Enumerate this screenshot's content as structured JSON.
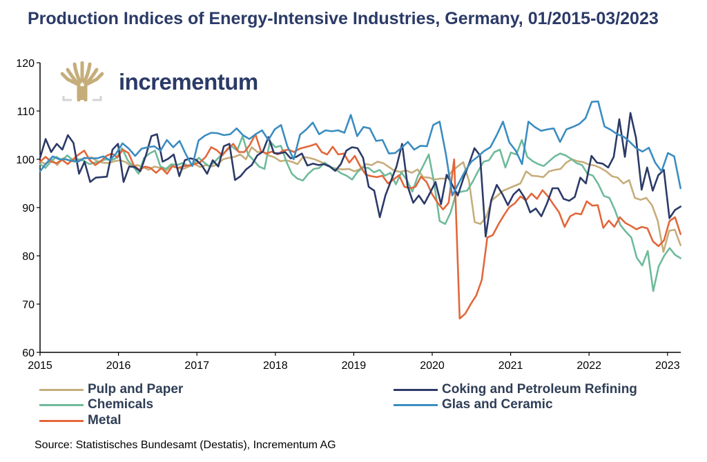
{
  "title": "Production Indices of Energy-Intensive Industries, Germany, 01/2015-03/2023",
  "logo": {
    "name": "incrementum",
    "icon": "tree-logo-icon"
  },
  "source": "Source: Statistisches Bundesamt (Destatis), Incrementum AG",
  "chart_data": {
    "type": "line",
    "title": "Production Indices of Energy-Intensive Industries, Germany, 01/2015-03/2023",
    "xlabel": "",
    "ylabel": "",
    "ylim": [
      60,
      120
    ],
    "yticks": [
      60,
      70,
      80,
      90,
      100,
      110,
      120
    ],
    "xticks": [
      "2015",
      "2016",
      "2017",
      "2018",
      "2019",
      "2020",
      "2021",
      "2022",
      "2023"
    ],
    "x_start": "2015-01",
    "x_end": "2023-03",
    "frequency": "monthly",
    "grid": false,
    "legend_position": "bottom",
    "series": [
      {
        "name": "Pulp and Paper",
        "color": "#c5ad7a",
        "values": [
          99.5,
          99,
          100,
          98.8,
          100.2,
          99.8,
          99.5,
          100,
          100.2,
          100.4,
          99.6,
          99.3,
          99.2,
          99.6,
          99.8,
          99.4,
          98.5,
          98.8,
          98.4,
          97.8,
          98.5,
          98.2,
          97.6,
          98.6,
          98.2,
          98,
          98.5,
          99,
          98.4,
          98.8,
          98.5,
          98.9,
          100,
          100.3,
          100.5,
          101,
          100,
          102.5,
          101.5,
          101.5,
          100.8,
          100.4,
          99.6,
          99.8,
          99.5,
          99,
          100.5,
          100.3,
          100,
          99.5,
          99,
          98.3,
          98,
          97.9,
          98,
          97.5,
          98,
          99,
          98.8,
          99.5,
          99.2,
          98.4,
          97.6,
          97.4,
          97.7,
          97.2,
          97.9,
          96.3,
          96.2,
          95.8,
          96,
          96,
          97.5,
          98.5,
          99.4,
          95.5,
          87,
          86.6,
          88,
          91.5,
          92.5,
          93.5,
          94,
          94.5,
          95,
          97.5,
          96.6,
          96.5,
          96.3,
          97.5,
          97.8,
          98,
          99.3,
          100,
          99.6,
          99.4,
          98.9,
          98.7,
          98.2,
          97.5,
          96.5,
          96.2,
          95,
          95.7,
          92,
          91.6,
          92,
          90.5,
          87.3,
          80.8,
          85.2,
          85.4,
          82.2
        ]
      },
      {
        "name": "Chemicals",
        "color": "#6fba9a",
        "values": [
          99,
          98.2,
          99.6,
          100.5,
          99.8,
          100.8,
          99.8,
          100,
          99.7,
          99,
          99.3,
          99.6,
          100,
          99.8,
          100.3,
          102.3,
          99.8,
          98.5,
          97,
          100.3,
          101.2,
          101.8,
          98.5,
          98,
          99,
          98.8,
          99.2,
          98.7,
          99,
          100.3,
          99.3,
          98.5,
          99.6,
          100.8,
          101.7,
          102.7,
          101.8,
          104.8,
          101,
          99.8,
          98.5,
          98,
          103.7,
          102.5,
          102.8,
          99.5,
          97,
          96,
          95.6,
          97,
          98,
          98.2,
          99.3,
          98.5,
          97.9,
          97.1,
          96.6,
          95.8,
          97.4,
          98.3,
          98.2,
          97.3,
          97.8,
          96.6,
          97.2,
          94.8,
          97.3,
          95.7,
          93.3,
          96.5,
          98.7,
          101,
          95,
          87.2,
          86.6,
          89,
          93,
          93.3,
          93.5,
          95.3,
          97.5,
          99.5,
          99.8,
          101.5,
          102,
          98.3,
          101.4,
          101,
          104,
          100.5,
          99.6,
          99,
          98.6,
          99.6,
          100.6,
          101.2,
          100.8,
          100.1,
          99.2,
          98.8,
          97,
          96.6,
          94.8,
          92.4,
          92,
          89.5,
          86.4,
          85,
          83.8,
          79.6,
          78,
          81,
          72.7,
          77.8,
          80,
          81.6,
          80.2,
          79.5
        ]
      },
      {
        "name": "Metal",
        "color": "#e2673a",
        "values": [
          99.5,
          100.5,
          99.5,
          99.2,
          99.9,
          99,
          100,
          101,
          101.8,
          99.8,
          98.8,
          99.6,
          100.7,
          101.2,
          100.4,
          102,
          101.3,
          98.7,
          97.8,
          98.5,
          98.2,
          97.2,
          98.2,
          97,
          98.6,
          98.2,
          98.6,
          98.7,
          99,
          99.4,
          100.5,
          102.5,
          101.9,
          100.8,
          102.2,
          103.2,
          101.5,
          101.5,
          103,
          105.2,
          101.7,
          101.2,
          101.6,
          101,
          101.8,
          102,
          101.5,
          102.2,
          102.5,
          102.8,
          103.2,
          101.5,
          101,
          102.6,
          101,
          101.2,
          99.3,
          100.7,
          98.5,
          96.8,
          96.5,
          96.3,
          96.6,
          95,
          95.8,
          96.7,
          94.3,
          94,
          94.3,
          96.4,
          95.3,
          92.8,
          91,
          89.6,
          91,
          100,
          67,
          68,
          70,
          71.8,
          75,
          83.8,
          84.3,
          86.5,
          88.4,
          90.1,
          90.9,
          92.3,
          91.5,
          92.9,
          91.8,
          93.6,
          92.3,
          90.6,
          89,
          86,
          88.2,
          88.8,
          88.6,
          91.3,
          90.4,
          90.5,
          85.8,
          87.3,
          86,
          88,
          86.8,
          86.2,
          85.5,
          86,
          85.7,
          83,
          82,
          83.2,
          87.2,
          88,
          84.5
        ]
      },
      {
        "name": "Coking and Petroleum Refining",
        "color": "#2b3a67",
        "values": [
          100.3,
          104.2,
          101.5,
          103.2,
          102,
          105,
          103.4,
          97,
          99.5,
          95.3,
          96.2,
          96.3,
          96.4,
          102,
          103.2,
          95.3,
          98.5,
          98.4,
          97.5,
          100.8,
          104.8,
          105.2,
          99.5,
          100.1,
          101,
          96.5,
          99.8,
          100.2,
          99.9,
          98.8,
          97,
          99.8,
          98.5,
          102.7,
          103.2,
          95.7,
          96.5,
          97.9,
          98.8,
          100.8,
          101.6,
          104.6,
          101.3,
          101.2,
          101.5,
          100.2,
          100.5,
          101.2,
          98.7,
          99.1,
          98.8,
          99,
          98.5,
          97.6,
          99,
          101.8,
          102.5,
          102.3,
          100.3,
          94.3,
          93.5,
          88,
          92.5,
          95.5,
          98.5,
          103.2,
          94.4,
          91,
          92.5,
          90.8,
          93,
          95.3,
          90.7,
          96.8,
          94.7,
          92.5,
          96,
          99,
          102.3,
          100.8,
          84,
          91.5,
          94.7,
          92.8,
          90.5,
          92.7,
          93.8,
          92,
          89,
          89.8,
          88.2,
          90.8,
          94,
          94,
          91.8,
          91.4,
          92.2,
          96.2,
          95,
          100.7,
          99.3,
          99.1,
          98.3,
          100.5,
          108.3,
          100.5,
          109.6,
          104.4,
          93.7,
          98.3,
          93.5,
          96.7,
          97.8,
          87.8,
          89.5,
          90.2
        ]
      },
      {
        "name": "Glas and Ceramic",
        "color": "#3a8cc1",
        "values": [
          97.5,
          99.2,
          100.6,
          100,
          100,
          99.7,
          99.5,
          100.3,
          100.2,
          100.2,
          100.6,
          99.8,
          101.2,
          103.3,
          102.2,
          100.7,
          102.2,
          102.5,
          102.7,
          101.8,
          104,
          102.5,
          103.8,
          101,
          98.6,
          103.9,
          104.9,
          105.5,
          105.4,
          105,
          105.2,
          106.4,
          105,
          104.2,
          105.2,
          106,
          104,
          106.2,
          107.1,
          102.7,
          100,
          105.1,
          106.2,
          107.6,
          105.2,
          106,
          105.8,
          106,
          105.5,
          109.2,
          104.8,
          106.7,
          106.4,
          103.8,
          104,
          101.2,
          101.3,
          102.4,
          103.6,
          102,
          102.8,
          102.7,
          107.1,
          107.8,
          101,
          92.5,
          95,
          97.5,
          99.5,
          100.5,
          101.7,
          102.5,
          105,
          107.8,
          103.5,
          101.8,
          99,
          107.8,
          106.7,
          105.9,
          106.2,
          106.4,
          103.6,
          106.2,
          106.7,
          107.3,
          108.5,
          111.9,
          112,
          106.8,
          106.1,
          105.2,
          104.7,
          103.6,
          102.3,
          101.6,
          102.4,
          99.3,
          97.5,
          101.3,
          100.6,
          94
        ]
      }
    ]
  },
  "legend": [
    {
      "label": "Pulp and Paper",
      "color": "#c5ad7a"
    },
    {
      "label": "Chemicals",
      "color": "#6fba9a"
    },
    {
      "label": "Metal",
      "color": "#e2673a"
    },
    {
      "label": "Coking and Petroleum Refining",
      "color": "#2b3a67"
    },
    {
      "label": "Glas and Ceramic",
      "color": "#3a8cc1"
    }
  ]
}
